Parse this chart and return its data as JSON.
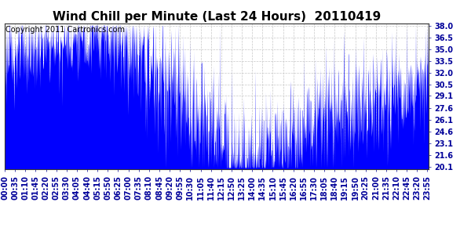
{
  "title": "Wind Chill per Minute (Last 24 Hours)  20110419",
  "copyright_text": "Copyright 2011 Cartronics.com",
  "line_color": "#0000ff",
  "background_color": "#ffffff",
  "grid_color": "#c8c8c8",
  "yticks": [
    20.1,
    21.6,
    23.1,
    24.6,
    26.1,
    27.6,
    29.1,
    30.5,
    32.0,
    33.5,
    35.0,
    36.5,
    38.0
  ],
  "ylim": [
    19.8,
    38.3
  ],
  "total_minutes": 1440,
  "title_fontsize": 11,
  "copyright_fontsize": 7
}
